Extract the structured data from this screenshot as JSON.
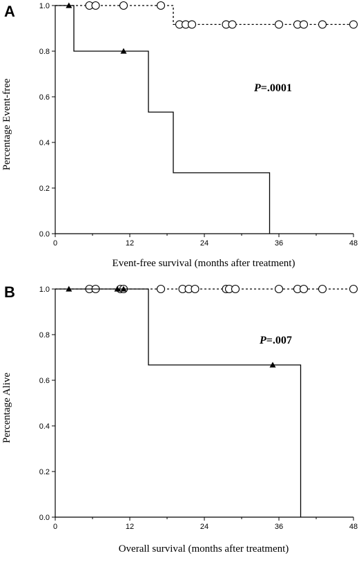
{
  "chart_data": [
    {
      "type": "line",
      "panel_label": "A",
      "xlabel": "Event-free survival (months after treatment)",
      "ylabel": "Percentage Event-free",
      "xlim": [
        0,
        48
      ],
      "ylim": [
        0,
        1.0
      ],
      "xticks": [
        "0",
        "12",
        "24",
        "36",
        "48"
      ],
      "yticks": [
        "0.0",
        "0.2",
        "0.4",
        "0.6",
        "0.8",
        "1.0"
      ],
      "annotation": {
        "p_label": "P",
        "p_value": "=.0001"
      },
      "grid": false,
      "series": [
        {
          "style": "dashed",
          "marker": "circle",
          "steps": [
            [
              0,
              1.0
            ],
            [
              19,
              1.0
            ],
            [
              19,
              0.917
            ],
            [
              48,
              0.917
            ]
          ],
          "censored": [
            [
              5.5,
              1.0
            ],
            [
              6.5,
              1.0
            ],
            [
              11,
              1.0
            ],
            [
              17,
              1.0
            ],
            [
              20,
              0.917
            ],
            [
              21,
              0.917
            ],
            [
              22,
              0.917
            ],
            [
              27.5,
              0.917
            ],
            [
              28.5,
              0.917
            ],
            [
              36,
              0.917
            ],
            [
              39,
              0.917
            ],
            [
              40,
              0.917
            ],
            [
              43,
              0.917
            ],
            [
              48,
              0.917
            ]
          ]
        },
        {
          "style": "solid",
          "marker": "triangle",
          "steps": [
            [
              0,
              1.0
            ],
            [
              3,
              1.0
            ],
            [
              3,
              0.8
            ],
            [
              15,
              0.8
            ],
            [
              15,
              0.533
            ],
            [
              19,
              0.533
            ],
            [
              19,
              0.267
            ],
            [
              34.5,
              0.267
            ],
            [
              34.5,
              0.0
            ]
          ],
          "censored": [
            [
              2.2,
              1.0
            ],
            [
              11,
              0.8
            ]
          ]
        }
      ]
    },
    {
      "type": "line",
      "panel_label": "B",
      "xlabel": "Overall survival (months after treatment)",
      "ylabel": "Percentage Alive",
      "xlim": [
        0,
        48
      ],
      "ylim": [
        0,
        1.0
      ],
      "xticks": [
        "0",
        "12",
        "24",
        "36",
        "48"
      ],
      "yticks": [
        "0.0",
        "0.2",
        "0.4",
        "0.6",
        "0.8",
        "1.0"
      ],
      "annotation": {
        "p_label": "P",
        "p_value": "=.007"
      },
      "grid": false,
      "series": [
        {
          "style": "dashed",
          "marker": "circle",
          "steps": [
            [
              0,
              1.0
            ],
            [
              48,
              1.0
            ]
          ],
          "censored": [
            [
              5.5,
              1.0
            ],
            [
              6.5,
              1.0
            ],
            [
              10.5,
              1.0
            ],
            [
              11,
              1.0
            ],
            [
              17,
              1.0
            ],
            [
              20.5,
              1.0
            ],
            [
              21.5,
              1.0
            ],
            [
              22.5,
              1.0
            ],
            [
              27.5,
              1.0
            ],
            [
              28,
              1.0
            ],
            [
              29,
              1.0
            ],
            [
              36,
              1.0
            ],
            [
              39,
              1.0
            ],
            [
              40,
              1.0
            ],
            [
              43,
              1.0
            ],
            [
              48,
              1.0
            ]
          ]
        },
        {
          "style": "solid",
          "marker": "triangle",
          "steps": [
            [
              0,
              1.0
            ],
            [
              15,
              1.0
            ],
            [
              15,
              0.667
            ],
            [
              39.5,
              0.667
            ],
            [
              39.5,
              0.0
            ]
          ],
          "censored": [
            [
              2.2,
              1.0
            ],
            [
              10,
              1.0
            ],
            [
              11,
              1.0
            ],
            [
              35,
              0.667
            ]
          ]
        }
      ]
    }
  ]
}
